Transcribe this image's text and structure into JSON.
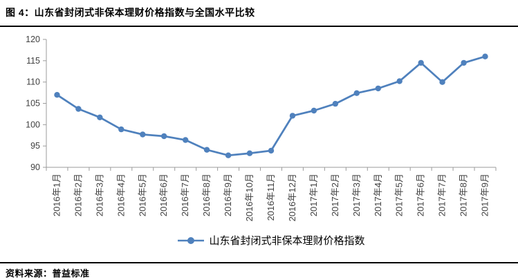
{
  "title": "图 4：山东省封闭式非保本理财价格指数与全国水平比较",
  "source": "资料来源：普益标准",
  "colors": {
    "series_line": "#4F81BD",
    "axis_line": "#9b9b9b",
    "tick_text": "#404040",
    "divider": "#000000"
  },
  "chart_data": {
    "type": "line",
    "title": "山东省封闭式非保本理财价格指数与全国水平比较",
    "categories": [
      "2016年1月",
      "2016年2月",
      "2016年3月",
      "2016年4月",
      "2016年5月",
      "2016年6月",
      "2016年7月",
      "2016年8月",
      "2016年9月",
      "2016年10月",
      "2016年11月",
      "2016年12月",
      "2017年1月",
      "2017年2月",
      "2017年3月",
      "2017年4月",
      "2017年5月",
      "2017年6月",
      "2017年7月",
      "2017年8月",
      "2017年9月"
    ],
    "series": [
      {
        "name": "山东省封闭式非保本理财价格指数",
        "values": [
          107.0,
          103.7,
          101.7,
          98.9,
          97.7,
          97.3,
          96.4,
          94.1,
          92.8,
          93.3,
          93.9,
          102.1,
          103.3,
          104.9,
          107.4,
          108.5,
          110.2,
          114.5,
          110.0,
          114.5,
          116.0
        ]
      }
    ],
    "xlabel": "",
    "ylabel": "",
    "ylim": [
      90,
      120
    ],
    "ytick_step": 5,
    "yticks": [
      90,
      95,
      100,
      105,
      110,
      115,
      120
    ],
    "grid": false,
    "legend_position": "bottom",
    "marker": "circle"
  }
}
